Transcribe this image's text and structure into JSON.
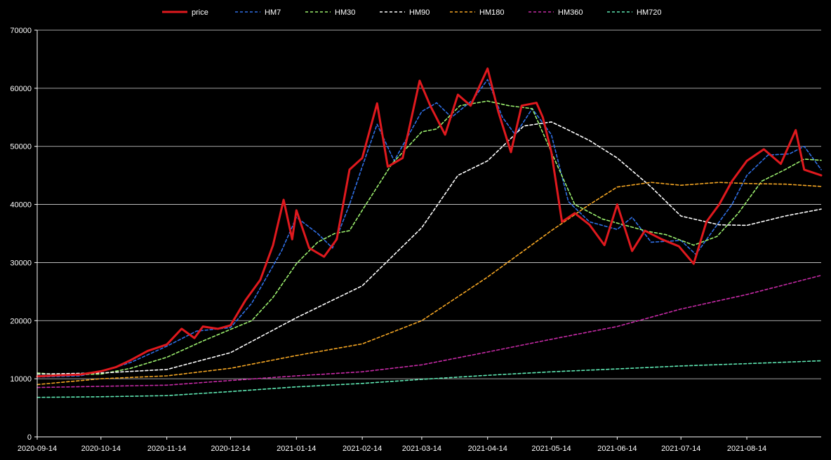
{
  "chart_data": {
    "type": "line",
    "title": "",
    "xlabel": "",
    "ylabel": "",
    "x_tick_labels": [
      "2020-09-14",
      "2020-10-14",
      "2020-11-14",
      "2020-12-14",
      "2021-01-14",
      "2021-02-14",
      "2021-03-14",
      "2021-04-14",
      "2021-05-14",
      "2021-06-14",
      "2021-07-14",
      "2021-08-14"
    ],
    "y_tick_labels": [
      "0",
      "10000",
      "20000",
      "30000",
      "40000",
      "50000",
      "60000",
      "70000"
    ],
    "ylim": [
      0,
      70000
    ],
    "xlim": [
      "2020-09-14",
      "2021-09-18"
    ],
    "grid": "horizontal",
    "legend_position": "top",
    "series": [
      {
        "name": "price",
        "color": "#e0191e",
        "dashed": false,
        "points": [
          [
            "2020-09-14",
            10400
          ],
          [
            "2020-09-24",
            10600
          ],
          [
            "2020-10-04",
            10700
          ],
          [
            "2020-10-14",
            11300
          ],
          [
            "2020-10-21",
            12000
          ],
          [
            "2020-10-28",
            13200
          ],
          [
            "2020-11-05",
            14800
          ],
          [
            "2020-11-14",
            15900
          ],
          [
            "2020-11-21",
            18600
          ],
          [
            "2020-11-27",
            17000
          ],
          [
            "2020-12-01",
            19000
          ],
          [
            "2020-12-08",
            18600
          ],
          [
            "2020-12-14",
            19200
          ],
          [
            "2020-12-21",
            23500
          ],
          [
            "2020-12-28",
            27000
          ],
          [
            "2021-01-03",
            33000
          ],
          [
            "2021-01-08",
            40800
          ],
          [
            "2021-01-12",
            34000
          ],
          [
            "2021-01-14",
            39000
          ],
          [
            "2021-01-20",
            32500
          ],
          [
            "2021-01-27",
            31000
          ],
          [
            "2021-02-02",
            34000
          ],
          [
            "2021-02-08",
            46000
          ],
          [
            "2021-02-14",
            48000
          ],
          [
            "2021-02-21",
            57400
          ],
          [
            "2021-02-26",
            46500
          ],
          [
            "2021-03-05",
            48000
          ],
          [
            "2021-03-13",
            61300
          ],
          [
            "2021-03-18",
            57000
          ],
          [
            "2021-03-25",
            52000
          ],
          [
            "2021-03-31",
            58900
          ],
          [
            "2021-04-06",
            57000
          ],
          [
            "2021-04-14",
            63400
          ],
          [
            "2021-04-19",
            56000
          ],
          [
            "2021-04-25",
            49000
          ],
          [
            "2021-04-30",
            57000
          ],
          [
            "2021-05-07",
            57500
          ],
          [
            "2021-05-10",
            55000
          ],
          [
            "2021-05-14",
            49000
          ],
          [
            "2021-05-19",
            37000
          ],
          [
            "2021-05-25",
            38500
          ],
          [
            "2021-06-01",
            36500
          ],
          [
            "2021-06-08",
            33000
          ],
          [
            "2021-06-14",
            40000
          ],
          [
            "2021-06-21",
            32000
          ],
          [
            "2021-06-27",
            35500
          ],
          [
            "2021-07-05",
            34000
          ],
          [
            "2021-07-13",
            32800
          ],
          [
            "2021-07-20",
            29800
          ],
          [
            "2021-07-26",
            37000
          ],
          [
            "2021-08-01",
            40000
          ],
          [
            "2021-08-07",
            44000
          ],
          [
            "2021-08-14",
            47500
          ],
          [
            "2021-08-22",
            49500
          ],
          [
            "2021-08-30",
            47000
          ],
          [
            "2021-09-06",
            52800
          ],
          [
            "2021-09-10",
            46000
          ],
          [
            "2021-09-18",
            45000
          ]
        ]
      },
      {
        "name": "HM7",
        "color": "#2f6fe6",
        "dashed": true,
        "points": [
          [
            "2020-09-14",
            10300
          ],
          [
            "2020-10-04",
            10500
          ],
          [
            "2020-10-14",
            11200
          ],
          [
            "2020-10-28",
            12800
          ],
          [
            "2020-11-14",
            15600
          ],
          [
            "2020-11-28",
            18200
          ],
          [
            "2020-12-14",
            18800
          ],
          [
            "2020-12-24",
            23000
          ],
          [
            "2021-01-07",
            32000
          ],
          [
            "2021-01-14",
            37800
          ],
          [
            "2021-01-24",
            35000
          ],
          [
            "2021-01-31",
            32500
          ],
          [
            "2021-02-08",
            40000
          ],
          [
            "2021-02-14",
            46500
          ],
          [
            "2021-02-21",
            53800
          ],
          [
            "2021-03-01",
            47500
          ],
          [
            "2021-03-14",
            56000
          ],
          [
            "2021-03-21",
            57500
          ],
          [
            "2021-03-28",
            55000
          ],
          [
            "2021-04-07",
            58000
          ],
          [
            "2021-04-14",
            61500
          ],
          [
            "2021-04-21",
            55000
          ],
          [
            "2021-04-27",
            52000
          ],
          [
            "2021-05-05",
            56500
          ],
          [
            "2021-05-14",
            52000
          ],
          [
            "2021-05-22",
            40500
          ],
          [
            "2021-06-01",
            37000
          ],
          [
            "2021-06-14",
            35700
          ],
          [
            "2021-06-21",
            37800
          ],
          [
            "2021-06-30",
            33500
          ],
          [
            "2021-07-14",
            33800
          ],
          [
            "2021-07-21",
            31400
          ],
          [
            "2021-07-31",
            36500
          ],
          [
            "2021-08-07",
            40000
          ],
          [
            "2021-08-14",
            45000
          ],
          [
            "2021-08-24",
            48500
          ],
          [
            "2021-09-03",
            48700
          ],
          [
            "2021-09-10",
            50000
          ],
          [
            "2021-09-18",
            46000
          ]
        ]
      },
      {
        "name": "HM30",
        "color": "#9cf06e",
        "dashed": true,
        "points": [
          [
            "2020-09-14",
            11000
          ],
          [
            "2020-09-24",
            10700
          ],
          [
            "2020-10-14",
            10800
          ],
          [
            "2020-10-28",
            11800
          ],
          [
            "2020-11-14",
            13700
          ],
          [
            "2020-12-01",
            16500
          ],
          [
            "2020-12-14",
            18500
          ],
          [
            "2020-12-24",
            20000
          ],
          [
            "2021-01-03",
            24000
          ],
          [
            "2021-01-14",
            29800
          ],
          [
            "2021-01-24",
            33500
          ],
          [
            "2021-02-01",
            35000
          ],
          [
            "2021-02-08",
            35500
          ],
          [
            "2021-02-14",
            39000
          ],
          [
            "2021-02-28",
            47000
          ],
          [
            "2021-03-14",
            52500
          ],
          [
            "2021-03-21",
            53000
          ],
          [
            "2021-04-01",
            57000
          ],
          [
            "2021-04-14",
            57800
          ],
          [
            "2021-04-24",
            57000
          ],
          [
            "2021-05-05",
            56500
          ],
          [
            "2021-05-14",
            49000
          ],
          [
            "2021-05-25",
            40000
          ],
          [
            "2021-06-07",
            37500
          ],
          [
            "2021-06-17",
            36500
          ],
          [
            "2021-06-28",
            35400
          ],
          [
            "2021-07-07",
            34800
          ],
          [
            "2021-07-20",
            33000
          ],
          [
            "2021-07-31",
            34500
          ],
          [
            "2021-08-10",
            38500
          ],
          [
            "2021-08-21",
            44000
          ],
          [
            "2021-09-01",
            46000
          ],
          [
            "2021-09-10",
            47800
          ],
          [
            "2021-09-18",
            47600
          ]
        ]
      },
      {
        "name": "HM90",
        "color": "#ffffff",
        "dashed": true,
        "points": [
          [
            "2020-09-14",
            10800
          ],
          [
            "2020-10-14",
            11000
          ],
          [
            "2020-11-14",
            11600
          ],
          [
            "2020-12-14",
            14500
          ],
          [
            "2021-01-14",
            20500
          ],
          [
            "2021-02-14",
            26000
          ],
          [
            "2021-03-14",
            36000
          ],
          [
            "2021-03-31",
            45000
          ],
          [
            "2021-04-14",
            47500
          ],
          [
            "2021-05-01",
            53500
          ],
          [
            "2021-05-14",
            54200
          ],
          [
            "2021-05-21",
            53000
          ],
          [
            "2021-06-01",
            51000
          ],
          [
            "2021-06-14",
            48000
          ],
          [
            "2021-06-30",
            43000
          ],
          [
            "2021-07-14",
            38000
          ],
          [
            "2021-08-01",
            36500
          ],
          [
            "2021-08-14",
            36400
          ],
          [
            "2021-09-01",
            38000
          ],
          [
            "2021-09-18",
            39200
          ]
        ]
      },
      {
        "name": "HM180",
        "color": "#f5a623",
        "dashed": true,
        "points": [
          [
            "2020-09-14",
            9000
          ],
          [
            "2020-10-14",
            10000
          ],
          [
            "2020-11-14",
            10500
          ],
          [
            "2020-12-14",
            11800
          ],
          [
            "2021-01-14",
            14000
          ],
          [
            "2021-02-14",
            16000
          ],
          [
            "2021-03-14",
            20000
          ],
          [
            "2021-04-14",
            27500
          ],
          [
            "2021-05-14",
            35500
          ],
          [
            "2021-06-01",
            40000
          ],
          [
            "2021-06-14",
            43000
          ],
          [
            "2021-06-30",
            43800
          ],
          [
            "2021-07-14",
            43300
          ],
          [
            "2021-08-01",
            43800
          ],
          [
            "2021-08-14",
            43600
          ],
          [
            "2021-09-01",
            43500
          ],
          [
            "2021-09-18",
            43100
          ]
        ]
      },
      {
        "name": "HM360",
        "color": "#c62aa6",
        "dashed": true,
        "points": [
          [
            "2020-09-14",
            8500
          ],
          [
            "2020-10-14",
            8700
          ],
          [
            "2020-11-14",
            8900
          ],
          [
            "2020-12-14",
            9700
          ],
          [
            "2021-01-14",
            10500
          ],
          [
            "2021-02-14",
            11200
          ],
          [
            "2021-03-14",
            12400
          ],
          [
            "2021-04-14",
            14600
          ],
          [
            "2021-05-14",
            16800
          ],
          [
            "2021-06-14",
            19000
          ],
          [
            "2021-07-14",
            22000
          ],
          [
            "2021-08-14",
            24500
          ],
          [
            "2021-09-18",
            27800
          ]
        ]
      },
      {
        "name": "HM720",
        "color": "#5ee8b3",
        "dashed": true,
        "points": [
          [
            "2020-09-14",
            6800
          ],
          [
            "2020-10-14",
            6900
          ],
          [
            "2020-11-14",
            7100
          ],
          [
            "2020-12-14",
            7800
          ],
          [
            "2021-01-14",
            8600
          ],
          [
            "2021-02-14",
            9200
          ],
          [
            "2021-03-14",
            9900
          ],
          [
            "2021-04-14",
            10600
          ],
          [
            "2021-05-14",
            11200
          ],
          [
            "2021-06-14",
            11700
          ],
          [
            "2021-07-14",
            12200
          ],
          [
            "2021-08-14",
            12600
          ],
          [
            "2021-09-18",
            13100
          ]
        ]
      }
    ]
  }
}
